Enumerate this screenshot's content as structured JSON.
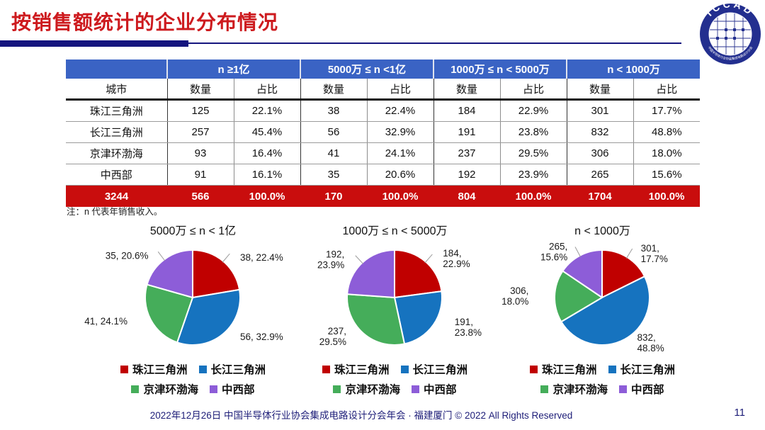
{
  "title": "按销售额统计的企业分布情况",
  "logo": {
    "acronym": "ICCAD",
    "ring_text": "中国半导体行业协会集成电路设计分会"
  },
  "table": {
    "city_header": "城市",
    "col_groups": [
      "n ≥1亿",
      "5000万 ≤ n <1亿",
      "1000万 ≤ n < 5000万",
      "n < 1000万"
    ],
    "sub_headers": [
      "数量",
      "占比"
    ],
    "rows": [
      {
        "city": "珠江三角洲",
        "cells": [
          "125",
          "22.1%",
          "38",
          "22.4%",
          "184",
          "22.9%",
          "301",
          "17.7%"
        ]
      },
      {
        "city": "长江三角洲",
        "cells": [
          "257",
          "45.4%",
          "56",
          "32.9%",
          "191",
          "23.8%",
          "832",
          "48.8%"
        ]
      },
      {
        "city": "京津环渤海",
        "cells": [
          "93",
          "16.4%",
          "41",
          "24.1%",
          "237",
          "29.5%",
          "306",
          "18.0%"
        ]
      },
      {
        "city": "中西部",
        "cells": [
          "91",
          "16.1%",
          "35",
          "20.6%",
          "192",
          "23.9%",
          "265",
          "15.6%"
        ]
      }
    ],
    "total": {
      "city": "3244",
      "cells": [
        "566",
        "100.0%",
        "170",
        "100.0%",
        "804",
        "100.0%",
        "1704",
        "100.0%"
      ]
    }
  },
  "note": "注：n 代表年销售收入。",
  "series_colors": [
    "#c00000",
    "#1673bf",
    "#45ad5a",
    "#8d5dd8"
  ],
  "legend": {
    "items": [
      "珠江三角洲",
      "长江三角洲",
      "京津环渤海",
      "中西部"
    ]
  },
  "chart_data": [
    {
      "type": "pie",
      "title": "5000万 ≤ n < 1亿",
      "categories": [
        "珠江三角洲",
        "长江三角洲",
        "京津环渤海",
        "中西部"
      ],
      "values": [
        38,
        56,
        41,
        35
      ],
      "percents": [
        "22.4%",
        "32.9%",
        "24.1%",
        "20.6%"
      ],
      "labels": [
        "38, 22.4%",
        "56, 32.9%",
        "41, 24.1%",
        "35, 20.6%"
      ],
      "start_angle_deg": 0,
      "direction": "clockwise",
      "legend_position": "bottom"
    },
    {
      "type": "pie",
      "title": "1000万 ≤ n < 5000万",
      "categories": [
        "珠江三角洲",
        "长江三角洲",
        "京津环渤海",
        "中西部"
      ],
      "values": [
        184,
        191,
        237,
        192
      ],
      "percents": [
        "22.9%",
        "23.8%",
        "29.5%",
        "23.9%"
      ],
      "labels": [
        "184,\n22.9%",
        "191,\n23.8%",
        "237,\n29.5%",
        "192,\n23.9%"
      ],
      "start_angle_deg": 0,
      "direction": "clockwise",
      "legend_position": "bottom"
    },
    {
      "type": "pie",
      "title": "n < 1000万",
      "categories": [
        "珠江三角洲",
        "长江三角洲",
        "京津环渤海",
        "中西部"
      ],
      "values": [
        301,
        832,
        306,
        265
      ],
      "percents": [
        "17.7%",
        "48.8%",
        "18.0%",
        "15.6%"
      ],
      "labels": [
        "301,\n17.7%",
        "832,\n48.8%",
        "306,\n18.0%",
        "265,\n15.6%"
      ],
      "start_angle_deg": 0,
      "direction": "clockwise",
      "legend_position": "bottom"
    }
  ],
  "colors": {
    "title_red": "#cd1a1e",
    "header_blue": "#3a63c4",
    "total_row_red": "#c90d0d",
    "accent_navy": "#15157e",
    "footer_navy": "#1d1d78"
  },
  "footer": {
    "text": "2022年12月26日 中国半导体行业协会集成电路设计分会年会 · 福建厦门 © 2022 All Rights Reserved",
    "page": "11"
  }
}
